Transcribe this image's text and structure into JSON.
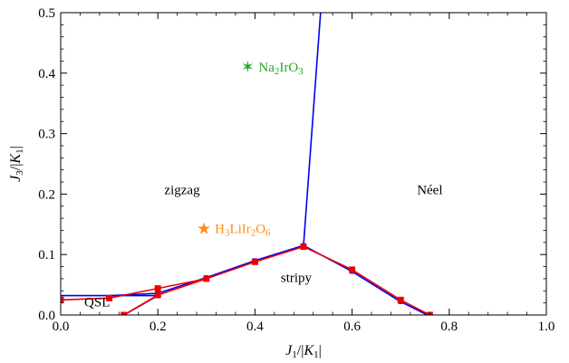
{
  "chart_data": {
    "type": "line",
    "xlabel": "J1/|K1|",
    "ylabel": "J3/|K1|",
    "xlim": [
      0,
      1
    ],
    "ylim": [
      0,
      0.5
    ],
    "x_ticks": [
      "0.0",
      "0.2",
      "0.4",
      "0.6",
      "0.8",
      "1.0"
    ],
    "y_ticks": [
      "0.0",
      "0.1",
      "0.2",
      "0.3",
      "0.4",
      "0.5"
    ],
    "x_tick_values": [
      0,
      0.2,
      0.4,
      0.6,
      0.8,
      1.0
    ],
    "y_tick_values": [
      0,
      0.1,
      0.2,
      0.3,
      0.4,
      0.5
    ],
    "grid": false,
    "series": [
      {
        "color": "#0000ee",
        "segments": [
          [
            [
              0.0,
              0.032
            ],
            [
              0.2,
              0.032
            ]
          ],
          [
            [
              0.2,
              0.032
            ],
            [
              0.13,
              0.0
            ]
          ],
          [
            [
              0.1,
              0.032
            ],
            [
              0.2,
              0.036
            ],
            [
              0.3,
              0.062
            ],
            [
              0.4,
              0.09
            ],
            [
              0.5,
              0.115
            ],
            [
              0.6,
              0.072
            ],
            [
              0.7,
              0.022
            ],
            [
              0.755,
              0.0
            ]
          ],
          [
            [
              0.5,
              0.115
            ],
            [
              0.535,
              0.5
            ]
          ]
        ],
        "markers": [
          [
            0.2,
            0.036
          ],
          [
            0.3,
            0.062
          ],
          [
            0.4,
            0.09
          ],
          [
            0.5,
            0.115
          ],
          [
            0.6,
            0.072
          ],
          [
            0.7,
            0.022
          ]
        ]
      },
      {
        "color": "#ee0000",
        "segments": [
          [
            [
              0.0,
              0.025
            ],
            [
              0.1,
              0.028
            ],
            [
              0.2,
              0.044
            ],
            [
              0.3,
              0.06
            ],
            [
              0.4,
              0.088
            ],
            [
              0.5,
              0.113
            ],
            [
              0.6,
              0.075
            ],
            [
              0.7,
              0.025
            ],
            [
              0.76,
              0.0
            ]
          ],
          [
            [
              0.13,
              0.0
            ],
            [
              0.2,
              0.033
            ],
            [
              0.3,
              0.06
            ]
          ]
        ],
        "markers": [
          [
            0.0,
            0.025
          ],
          [
            0.1,
            0.028
          ],
          [
            0.2,
            0.044
          ],
          [
            0.2,
            0.033
          ],
          [
            0.3,
            0.06
          ],
          [
            0.4,
            0.088
          ],
          [
            0.5,
            0.113
          ],
          [
            0.6,
            0.075
          ],
          [
            0.7,
            0.025
          ],
          [
            0.76,
            0.0
          ],
          [
            0.13,
            0.0
          ]
        ]
      }
    ],
    "annotations": [
      {
        "text": "QSL",
        "x": 0.075,
        "y": 0.014
      },
      {
        "text": "zigzag",
        "x": 0.25,
        "y": 0.2
      },
      {
        "text": "Néel",
        "x": 0.76,
        "y": 0.2
      },
      {
        "text": "stripy",
        "x": 0.485,
        "y": 0.055
      }
    ],
    "points": [
      {
        "label": "Na2IrO3",
        "x": 0.385,
        "y": 0.41,
        "marker": "✶",
        "color": "#22aa22"
      },
      {
        "label": "H3LiIr2O6",
        "x": 0.295,
        "y": 0.143,
        "marker": "★",
        "color": "#ff8c1a"
      }
    ]
  }
}
